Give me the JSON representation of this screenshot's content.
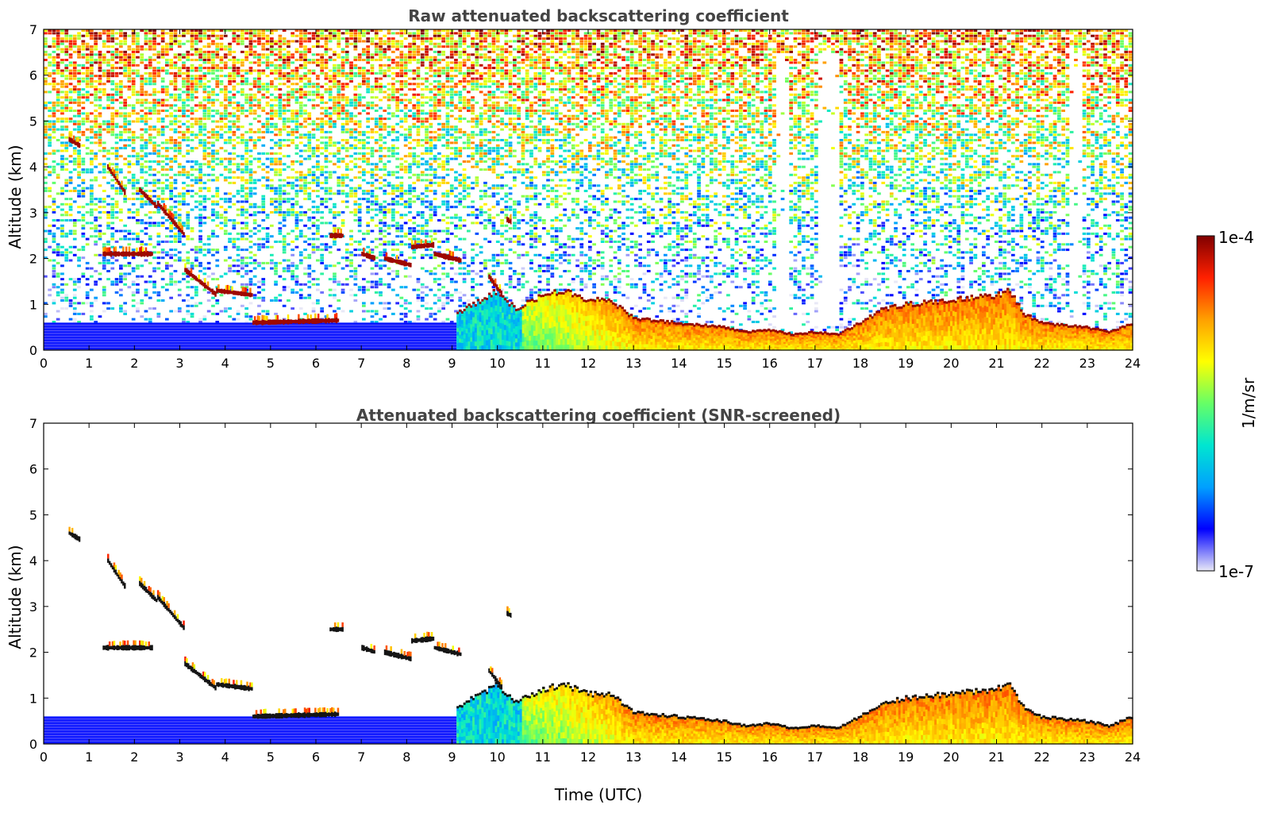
{
  "chart_data": [
    {
      "type": "heatmap",
      "title": "Raw attenuated backscattering coefficient",
      "xlabel": "",
      "ylabel": "Altitude (km)",
      "xlim": [
        0,
        24
      ],
      "ylim": [
        0,
        7
      ],
      "xticks": [
        "0",
        "1",
        "2",
        "3",
        "4",
        "5",
        "6",
        "7",
        "8",
        "9",
        "10",
        "11",
        "12",
        "13",
        "14",
        "15",
        "16",
        "17",
        "18",
        "19",
        "20",
        "21",
        "22",
        "23",
        "24"
      ],
      "yticks": [
        "0",
        "1",
        "2",
        "3",
        "4",
        "5",
        "6",
        "7"
      ],
      "screened": false,
      "layers": [
        {
          "name": "aerosol boundary layer (top, time UTC vs altitude km)",
          "time": [
            9.1,
            10.0,
            10.4,
            11.0,
            11.5,
            12.0,
            12.5,
            13.0,
            14.0,
            15.0,
            15.5,
            16.0,
            16.5,
            17.0,
            17.5,
            18.0,
            18.5,
            19.0,
            20.0,
            21.0,
            21.3,
            21.6,
            22.0,
            22.5,
            23.0,
            23.5,
            24.0
          ],
          "top_km": [
            0.8,
            1.3,
            0.9,
            1.2,
            1.3,
            1.1,
            1.1,
            0.7,
            0.6,
            0.5,
            0.4,
            0.45,
            0.35,
            0.4,
            0.35,
            0.6,
            0.9,
            1.0,
            1.1,
            1.2,
            1.3,
            0.8,
            0.6,
            0.55,
            0.5,
            0.4,
            0.6
          ]
        },
        {
          "name": "near-surface low-signal layer",
          "time": [
            0,
            9.1
          ],
          "top_km": 0.6
        },
        {
          "name": "cloud layers (start time, end time, start alt km, end alt km)",
          "segments": [
            [
              0.55,
              0.8,
              4.6,
              4.45
            ],
            [
              1.4,
              1.8,
              4.0,
              3.4
            ],
            [
              2.1,
              2.5,
              3.5,
              3.1
            ],
            [
              2.5,
              3.1,
              3.2,
              2.5
            ],
            [
              1.3,
              2.4,
              2.1,
              2.1
            ],
            [
              3.1,
              3.8,
              1.75,
              1.2
            ],
            [
              3.8,
              4.6,
              1.3,
              1.2
            ],
            [
              4.6,
              6.5,
              0.6,
              0.65
            ],
            [
              6.3,
              6.6,
              2.5,
              2.5
            ],
            [
              7.0,
              7.3,
              2.1,
              2.0
            ],
            [
              7.5,
              8.1,
              2.0,
              1.85
            ],
            [
              8.1,
              8.6,
              2.25,
              2.3
            ],
            [
              8.6,
              9.2,
              2.1,
              1.95
            ],
            [
              9.8,
              10.1,
              1.6,
              1.2
            ],
            [
              10.2,
              10.3,
              2.85,
              2.8
            ]
          ]
        }
      ],
      "noise_increases_with_altitude": true,
      "data_gaps": [
        [
          16.2,
          16.4
        ],
        [
          17.1,
          17.5
        ],
        [
          22.6,
          22.9
        ]
      ]
    },
    {
      "type": "heatmap",
      "title": "Attenuated backscattering coefficient (SNR-screened)",
      "xlabel": "Time (UTC)",
      "ylabel": "Altitude (km)",
      "xlim": [
        0,
        24
      ],
      "ylim": [
        0,
        7
      ],
      "xticks": [
        "0",
        "1",
        "2",
        "3",
        "4",
        "5",
        "6",
        "7",
        "8",
        "9",
        "10",
        "11",
        "12",
        "13",
        "14",
        "15",
        "16",
        "17",
        "18",
        "19",
        "20",
        "21",
        "22",
        "23",
        "24"
      ],
      "yticks": [
        "0",
        "1",
        "2",
        "3",
        "4",
        "5",
        "6",
        "7"
      ],
      "screened": true,
      "note": "same field as above with low-SNR pixels removed; saturated pixels shown black"
    }
  ],
  "colorbar": {
    "label": "1/m/sr",
    "max_label": "1e-4",
    "min_label": "1e-7",
    "scale": "log",
    "range": [
      1e-07,
      0.0001
    ],
    "colormap": [
      "#e8e8f6",
      "#0000ff",
      "#00a0ff",
      "#00e6d0",
      "#66ff66",
      "#ffff00",
      "#ffa000",
      "#ff2000",
      "#800000"
    ]
  }
}
